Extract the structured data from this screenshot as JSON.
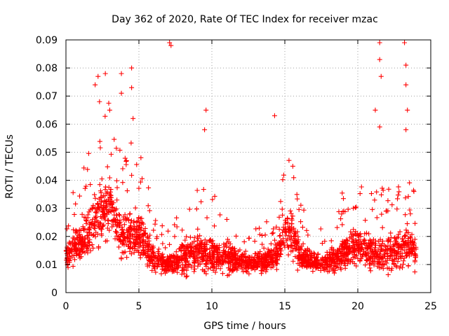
{
  "chart_data": {
    "type": "scatter",
    "title": "Day 362 of 2020, Rate Of TEC Index for receiver mzac",
    "xlabel": "GPS time / hours",
    "ylabel": "ROTI / TECUs",
    "xlim": [
      0,
      25
    ],
    "ylim": [
      0,
      0.09
    ],
    "xticks": [
      0,
      5,
      10,
      15,
      20,
      25
    ],
    "xtick_labels": [
      "0",
      "5",
      "10",
      "15",
      "20",
      "25"
    ],
    "yticks": [
      0,
      0.01,
      0.02,
      0.03,
      0.04,
      0.05,
      0.06,
      0.07,
      0.08,
      0.09
    ],
    "ytick_labels": [
      "0",
      "0.01",
      "0.02",
      "0.03",
      "0.04",
      "0.05",
      "0.06",
      "0.07",
      "0.08",
      "0.09"
    ],
    "grid": true,
    "marker": "+",
    "color": "#ff0000",
    "envelope": {
      "x": [
        0,
        0.5,
        1,
        1.5,
        2,
        2.5,
        3,
        3.5,
        4,
        4.5,
        5,
        5.5,
        6,
        6.5,
        7,
        7.5,
        8,
        8.5,
        9,
        9.5,
        10,
        10.5,
        11,
        11.5,
        12,
        12.5,
        13,
        13.5,
        14,
        14.5,
        15,
        15.5,
        16,
        16.5,
        17,
        17.5,
        18,
        18.5,
        19,
        19.5,
        20,
        20.5,
        21,
        21.5,
        22,
        22.5,
        23,
        23.5,
        24
      ],
      "typical": [
        0.012,
        0.016,
        0.018,
        0.02,
        0.026,
        0.028,
        0.03,
        0.024,
        0.02,
        0.022,
        0.021,
        0.017,
        0.012,
        0.011,
        0.01,
        0.011,
        0.013,
        0.014,
        0.015,
        0.014,
        0.014,
        0.013,
        0.013,
        0.012,
        0.011,
        0.011,
        0.011,
        0.011,
        0.012,
        0.014,
        0.022,
        0.02,
        0.014,
        0.012,
        0.011,
        0.01,
        0.011,
        0.012,
        0.014,
        0.016,
        0.016,
        0.015,
        0.014,
        0.014,
        0.014,
        0.015,
        0.015,
        0.016,
        0.014
      ],
      "spread": [
        0.006,
        0.008,
        0.01,
        0.012,
        0.014,
        0.015,
        0.015,
        0.013,
        0.012,
        0.013,
        0.012,
        0.01,
        0.006,
        0.005,
        0.005,
        0.006,
        0.008,
        0.009,
        0.01,
        0.009,
        0.009,
        0.008,
        0.008,
        0.007,
        0.005,
        0.005,
        0.005,
        0.005,
        0.006,
        0.007,
        0.012,
        0.011,
        0.008,
        0.006,
        0.005,
        0.005,
        0.005,
        0.007,
        0.009,
        0.011,
        0.011,
        0.01,
        0.009,
        0.009,
        0.009,
        0.01,
        0.01,
        0.011,
        0.008
      ]
    },
    "notable_points": [
      {
        "x": 2.0,
        "y": 0.074
      },
      {
        "x": 2.2,
        "y": 0.077
      },
      {
        "x": 2.3,
        "y": 0.068
      },
      {
        "x": 2.7,
        "y": 0.078
      },
      {
        "x": 3.0,
        "y": 0.065
      },
      {
        "x": 3.8,
        "y": 0.078
      },
      {
        "x": 3.8,
        "y": 0.071
      },
      {
        "x": 4.5,
        "y": 0.08
      },
      {
        "x": 4.5,
        "y": 0.073
      },
      {
        "x": 4.6,
        "y": 0.062
      },
      {
        "x": 7.1,
        "y": 0.089
      },
      {
        "x": 7.2,
        "y": 0.088
      },
      {
        "x": 9.6,
        "y": 0.065
      },
      {
        "x": 9.5,
        "y": 0.058
      },
      {
        "x": 14.3,
        "y": 0.063
      },
      {
        "x": 21.5,
        "y": 0.089
      },
      {
        "x": 21.5,
        "y": 0.083
      },
      {
        "x": 21.6,
        "y": 0.077
      },
      {
        "x": 21.2,
        "y": 0.065
      },
      {
        "x": 21.5,
        "y": 0.059
      },
      {
        "x": 23.2,
        "y": 0.089
      },
      {
        "x": 23.3,
        "y": 0.081
      },
      {
        "x": 23.3,
        "y": 0.074
      },
      {
        "x": 23.4,
        "y": 0.065
      },
      {
        "x": 23.3,
        "y": 0.058
      }
    ]
  }
}
